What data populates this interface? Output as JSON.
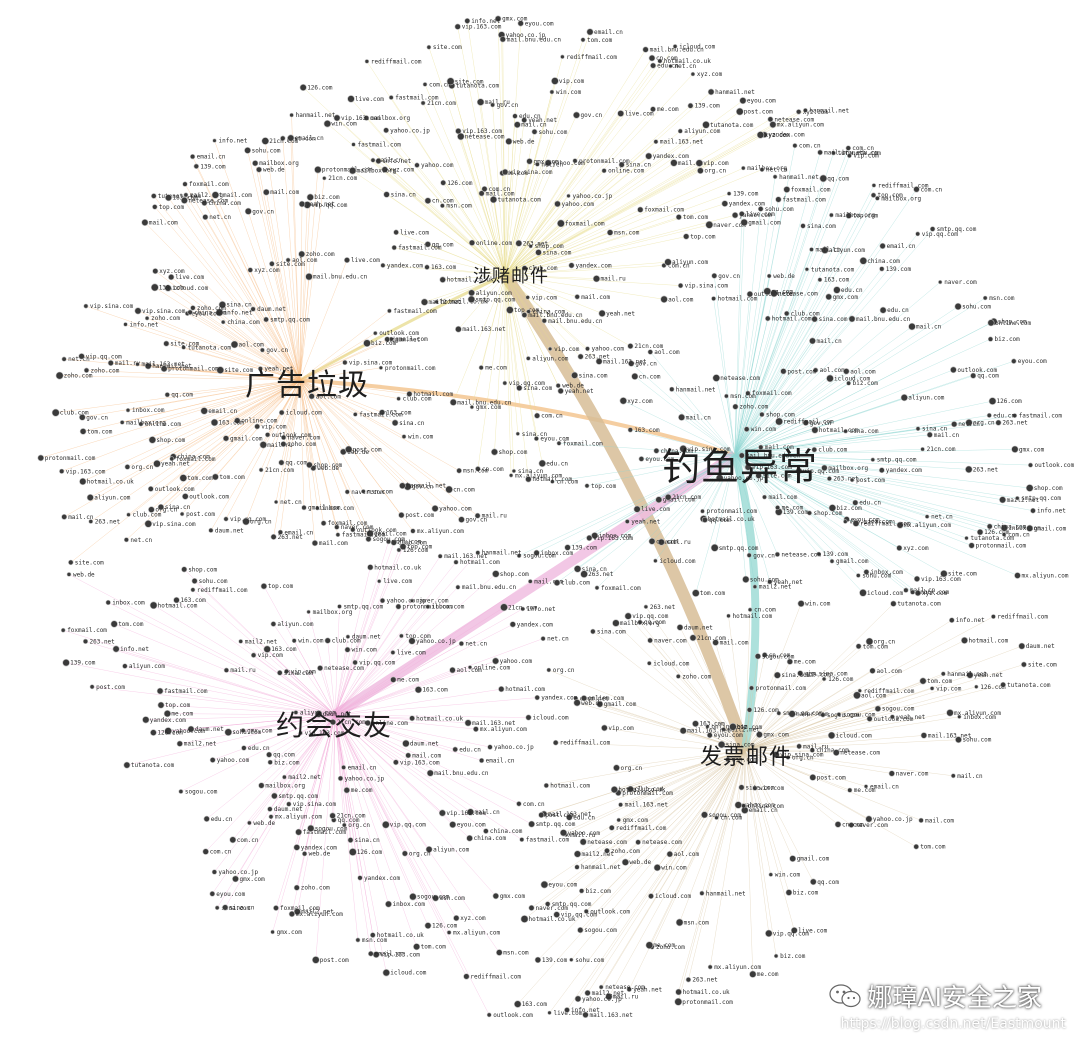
{
  "clusters": [
    {
      "id": "ad",
      "label": "广告垃圾",
      "color": "#f6b77c"
    },
    {
      "id": "gambling",
      "label": "涉赌邮件",
      "color": "#e7dc8a"
    },
    {
      "id": "phishing",
      "label": "钓鱼异常",
      "color": "#8fd6d2"
    },
    {
      "id": "dating",
      "label": "约会交友",
      "color": "#f2a9d8"
    },
    {
      "id": "invoice",
      "label": "发票邮件",
      "color": "#d8c5a2"
    }
  ],
  "node_labels": [
    "mail.com",
    "qq.com",
    "163.com",
    "126.com",
    "sina.com",
    "sohu.com",
    "yeah.net",
    "gmail.com",
    "hotmail.com",
    "outlook.com",
    "yahoo.com",
    "aol.com",
    "foxmail.com",
    "aliyun.com",
    "139.com",
    "21cn.com",
    "tom.com",
    "263.net",
    "mail.ru",
    "yandex.com",
    "zoho.com",
    "icloud.com",
    "me.com",
    "live.com",
    "msn.com",
    "protonmail.com",
    "gmx.com",
    "web.de",
    "naver.com",
    "daum.net",
    "hanmail.net",
    "rediffmail.com",
    "mail2.net",
    "post.com",
    "inbox.com",
    "fastmail.com",
    "tutanota.com",
    "mailbox.org",
    "sina.cn",
    "vip.qq.com",
    "vip.163.com",
    "vip.sina.com",
    "china.com",
    "eyou.com",
    "sogou.com",
    "netease.com",
    "hotmail.co.uk",
    "yahoo.co.jp",
    "mail.cn",
    "email.cn",
    "mail.163.net",
    "smtp.qq.com",
    "mx.aliyun.com",
    "mail.bnu.edu.cn",
    "edu.cn",
    "gov.cn",
    "org.cn",
    "net.cn",
    "com.cn",
    "cn.com",
    "biz.com",
    "info.net",
    "top.com",
    "xyz.com",
    "club.com",
    "vip.com",
    "shop.com",
    "online.com",
    "site.com",
    "win.com"
  ],
  "edge_color": "#bdbdbd",
  "watermark": {
    "brand": "娜璋AI安全之家",
    "url": "https://blog.csdn.net/Eastmount"
  }
}
